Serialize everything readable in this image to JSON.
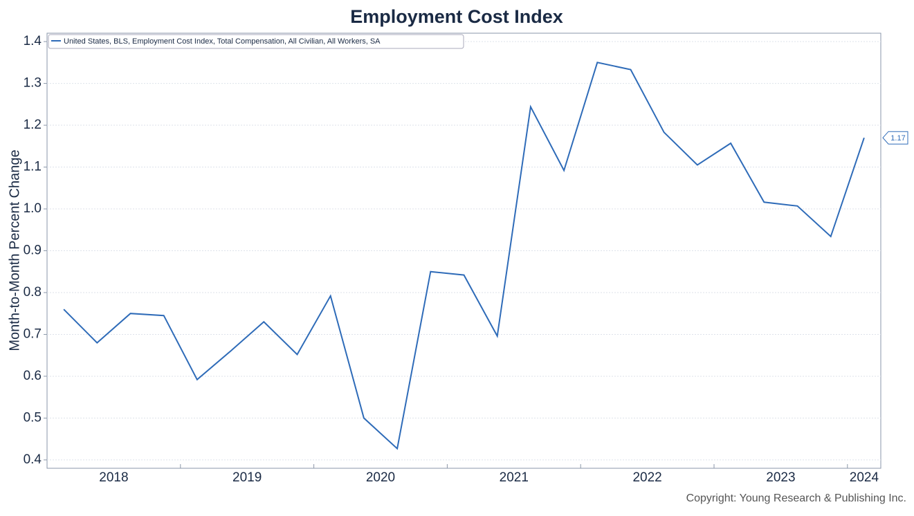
{
  "chart_data": {
    "type": "line",
    "title": "Employment Cost Index",
    "y_label": "Month-to-Month Percent Change",
    "copyright": "Copyright: Young Research & Publishing Inc.",
    "categories": [
      null,
      null,
      null,
      null,
      null,
      null,
      null,
      null,
      null,
      null,
      null,
      null,
      null,
      null,
      null,
      null,
      null,
      null,
      null,
      null,
      null,
      null,
      null,
      null,
      null
    ],
    "year_labels": [
      "2018",
      "2019",
      "2020",
      "2021",
      "2022",
      "2023",
      "2024"
    ],
    "series": [
      {
        "name": "United States, BLS, Employment Cost Index, Total Compensation, All Civilian, All Workers, SA",
        "color": "#2e6bb8",
        "values": [
          0.76,
          0.68,
          0.75,
          0.745,
          0.592,
          0.66,
          0.73,
          0.652,
          0.792,
          0.5,
          0.427,
          0.85,
          0.842,
          0.696,
          1.244,
          1.092,
          1.35,
          1.333,
          1.183,
          1.105,
          1.157,
          1.016,
          1.007,
          0.934,
          1.17
        ],
        "last_value_label": "1.17"
      }
    ],
    "ylim": [
      0.38,
      1.42
    ],
    "yticks": [
      0.4,
      0.5,
      0.6,
      0.7,
      0.8,
      0.9,
      {
        "value": 1,
        "label": "1.0"
      },
      1.1,
      1.2,
      1.3,
      1.4
    ],
    "grid": true,
    "legend": "top-left"
  }
}
